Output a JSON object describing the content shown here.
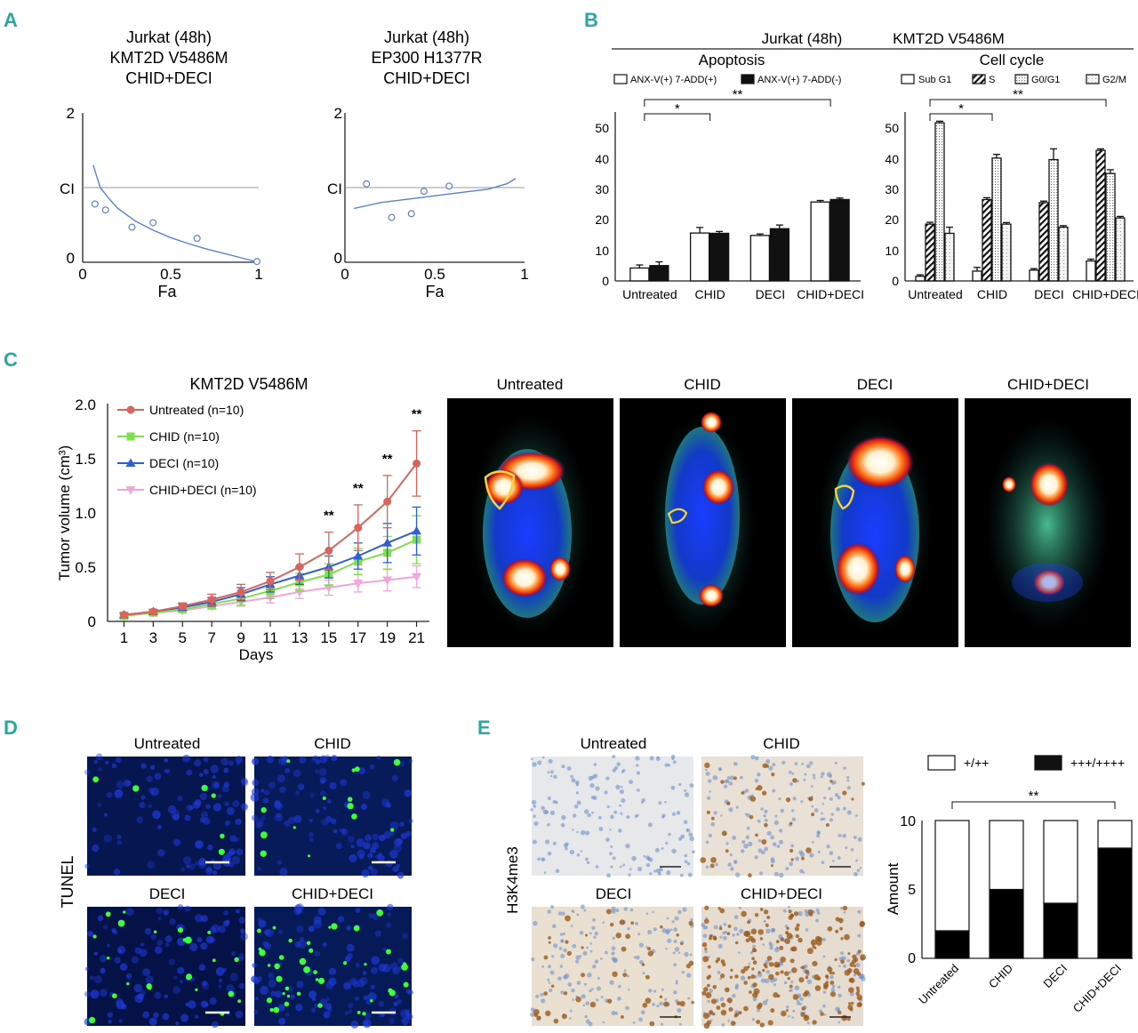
{
  "panels": {
    "A": {
      "label": "A",
      "plots": [
        {
          "title": [
            "Jurkat (48h)",
            "KMT2D V5486M",
            "CHID+DECI"
          ],
          "xlabel": "Fa",
          "ci_label": "CI",
          "xticks": [
            "0",
            "0.5",
            "1"
          ],
          "yticks": [
            "0",
            "2"
          ]
        },
        {
          "title": [
            "Jurkat (48h)",
            "EP300 H1377R",
            "CHID+DECI"
          ],
          "xlabel": "Fa",
          "ci_label": "CI",
          "xticks": [
            "0",
            "0.5",
            "1"
          ],
          "yticks": [
            "0",
            "2"
          ]
        }
      ]
    },
    "B": {
      "label": "B",
      "header": "Jurkat (48h)",
      "header2": "KMT2D V5486M",
      "apoptosis_title": "Apoptosis",
      "cellcycle_title": "Cell cycle",
      "apoptosis_legend": [
        "ANX-V(+) 7-ADD(+)",
        "ANX-V(+) 7-ADD(-)"
      ],
      "cellcycle_legend": [
        "Sub G1",
        "S",
        "G0/G1",
        "G2/M"
      ],
      "yticks": [
        "0",
        "10",
        "20",
        "30",
        "40",
        "50"
      ]
    },
    "C": {
      "label": "C",
      "title": "KMT2D V5486M",
      "ylabel": "Tumor volume (cm³)",
      "xlabel": "Days",
      "yticks": [
        "0",
        "0.5",
        "1.0",
        "1.5",
        "2.0"
      ],
      "xticks": [
        "1",
        "3",
        "5",
        "7",
        "9",
        "11",
        "13",
        "15",
        "17",
        "19",
        "21"
      ],
      "images": [
        "Untreated",
        "CHID",
        "DECI",
        "CHID+DECI"
      ]
    },
    "D": {
      "label": "D",
      "row_label": "TUNEL",
      "images": [
        "Untreated",
        "CHID",
        "DECI",
        "CHID+DECI"
      ]
    },
    "E": {
      "label": "E",
      "row_label": "H3K4me3",
      "images": [
        "Untreated",
        "CHID",
        "DECI",
        "CHID+DECI"
      ],
      "legend": [
        "+/++",
        "+++/++++"
      ],
      "ylabel": "Amount",
      "yticks": [
        "0",
        "5",
        "10"
      ],
      "sig": "**"
    }
  },
  "colors": {
    "untreated": "#d9645e",
    "chid": "#7ee04a",
    "deci": "#2f5fd0",
    "chiddeci": "#f2a5d8",
    "fit": "#5a7fd6",
    "accent": "#2aa7a0"
  },
  "chart_data": [
    {
      "id": "A1",
      "type": "scatter",
      "title": "Jurkat (48h) KMT2D V5486M CHID+DECI",
      "xlabel": "Fa",
      "ylabel": "CI",
      "xlim": [
        0,
        1
      ],
      "ylim": [
        0,
        2
      ],
      "points": [
        [
          0.07,
          0.78
        ],
        [
          0.13,
          0.7
        ],
        [
          0.28,
          0.47
        ],
        [
          0.4,
          0.53
        ],
        [
          0.65,
          0.32
        ],
        [
          0.99,
          0.01
        ]
      ],
      "fit": [
        [
          0.06,
          1.3
        ],
        [
          0.08,
          1.15
        ],
        [
          0.1,
          1.0
        ],
        [
          0.15,
          0.85
        ],
        [
          0.2,
          0.72
        ],
        [
          0.3,
          0.55
        ],
        [
          0.4,
          0.43
        ],
        [
          0.5,
          0.33
        ],
        [
          0.6,
          0.25
        ],
        [
          0.7,
          0.18
        ],
        [
          0.8,
          0.12
        ],
        [
          0.9,
          0.06
        ],
        [
          1.0,
          0.0
        ]
      ]
    },
    {
      "id": "A2",
      "type": "scatter",
      "title": "Jurkat (48h) EP300 H1377R CHID+DECI",
      "xlabel": "Fa",
      "ylabel": "CI",
      "xlim": [
        0,
        1
      ],
      "ylim": [
        0,
        2
      ],
      "points": [
        [
          0.12,
          1.05
        ],
        [
          0.26,
          0.6
        ],
        [
          0.37,
          0.65
        ],
        [
          0.44,
          0.95
        ],
        [
          0.58,
          1.02
        ]
      ],
      "fit": [
        [
          0.05,
          0.72
        ],
        [
          0.2,
          0.8
        ],
        [
          0.4,
          0.86
        ],
        [
          0.6,
          0.92
        ],
        [
          0.8,
          0.98
        ],
        [
          0.9,
          1.05
        ],
        [
          0.95,
          1.12
        ]
      ]
    },
    {
      "id": "B1",
      "type": "bar",
      "title": "Apoptosis",
      "categories": [
        "Untreated",
        "CHID",
        "DECI",
        "CHID+DECI"
      ],
      "ylim": [
        0,
        55
      ],
      "series": [
        {
          "name": "ANX-V(+) 7-ADD(+)",
          "values": [
            4.2,
            15.6,
            14.8,
            25.7
          ],
          "errors": [
            1.0,
            1.8,
            0.5,
            0.5
          ]
        },
        {
          "name": "ANX-V(+) 7-ADD(-)",
          "values": [
            5.0,
            15.5,
            17.0,
            26.5
          ],
          "errors": [
            1.2,
            0.6,
            1.2,
            0.5
          ]
        }
      ],
      "significance": [
        {
          "from": 0,
          "to": 1,
          "label": "*"
        },
        {
          "from": 0,
          "to": 3,
          "label": "**"
        }
      ]
    },
    {
      "id": "B2",
      "type": "bar",
      "title": "Cell cycle",
      "categories": [
        "Untreated",
        "CHID",
        "DECI",
        "CHID+DECI"
      ],
      "ylim": [
        0,
        55
      ],
      "series": [
        {
          "name": "Sub G1",
          "values": [
            1.5,
            3.2,
            3.5,
            6.5
          ],
          "errors": [
            0.5,
            1.2,
            0.5,
            0.6
          ]
        },
        {
          "name": "S",
          "values": [
            18.5,
            26.5,
            25.5,
            42.5
          ],
          "errors": [
            0.6,
            0.6,
            0.5,
            0.5
          ]
        },
        {
          "name": "G0/G1",
          "values": [
            51.5,
            40.0,
            39.5,
            35.0
          ],
          "errors": [
            0.5,
            1.2,
            3.5,
            1.2
          ]
        },
        {
          "name": "G2/M",
          "values": [
            15.5,
            18.5,
            17.5,
            20.5
          ],
          "errors": [
            2.0,
            0.5,
            0.5,
            0.5
          ]
        }
      ],
      "significance": [
        {
          "from": 0,
          "to": 1,
          "label": "*"
        },
        {
          "from": 0,
          "to": 3,
          "label": "**"
        }
      ]
    },
    {
      "id": "C",
      "type": "line",
      "title": "KMT2D V5486M",
      "xlabel": "Days",
      "ylabel": "Tumor volume (cm³)",
      "x": [
        1,
        3,
        5,
        7,
        9,
        11,
        13,
        15,
        17,
        19,
        21
      ],
      "xlim": [
        0,
        22
      ],
      "ylim": [
        0,
        2.0
      ],
      "series": [
        {
          "name": "Untreated (n=10)",
          "key": "untreated",
          "marker": "circle",
          "values": [
            0.06,
            0.09,
            0.14,
            0.2,
            0.27,
            0.37,
            0.5,
            0.65,
            0.86,
            1.1,
            1.45
          ],
          "errors": [
            0.02,
            0.02,
            0.03,
            0.05,
            0.07,
            0.08,
            0.12,
            0.17,
            0.21,
            0.24,
            0.3
          ],
          "sig": [
            "",
            "",
            "",
            "",
            "",
            "",
            "",
            "**",
            "**",
            "**",
            "**"
          ]
        },
        {
          "name": "CHID (n=10)",
          "key": "chid",
          "marker": "square",
          "values": [
            0.05,
            0.08,
            0.11,
            0.16,
            0.21,
            0.28,
            0.36,
            0.43,
            0.55,
            0.63,
            0.75
          ],
          "errors": [
            0.02,
            0.02,
            0.03,
            0.04,
            0.06,
            0.07,
            0.08,
            0.1,
            0.12,
            0.15,
            0.22
          ]
        },
        {
          "name": "DECI (n=10)",
          "key": "deci",
          "marker": "triangle",
          "values": [
            0.06,
            0.09,
            0.13,
            0.18,
            0.25,
            0.34,
            0.42,
            0.5,
            0.6,
            0.72,
            0.83
          ],
          "errors": [
            0.02,
            0.02,
            0.03,
            0.04,
            0.06,
            0.07,
            0.08,
            0.1,
            0.12,
            0.18,
            0.22
          ]
        },
        {
          "name": "CHID+DECI (n=10)",
          "key": "chiddeci",
          "marker": "triangle-down",
          "values": [
            0.05,
            0.08,
            0.1,
            0.14,
            0.18,
            0.22,
            0.27,
            0.31,
            0.35,
            0.38,
            0.41
          ],
          "errors": [
            0.02,
            0.02,
            0.02,
            0.03,
            0.04,
            0.05,
            0.06,
            0.07,
            0.08,
            0.1,
            0.1
          ]
        }
      ]
    },
    {
      "id": "E",
      "type": "bar",
      "stacked": true,
      "ylabel": "Amount",
      "categories": [
        "Untreated",
        "CHID",
        "DECI",
        "CHID+DECI"
      ],
      "ylim": [
        0,
        10
      ],
      "series": [
        {
          "name": "+++/++++",
          "values": [
            2,
            5,
            4,
            8
          ]
        },
        {
          "name": "+/++",
          "values": [
            8,
            5,
            6,
            2
          ]
        }
      ],
      "significance": [
        {
          "from": 0,
          "to": 3,
          "label": "**"
        }
      ]
    }
  ]
}
